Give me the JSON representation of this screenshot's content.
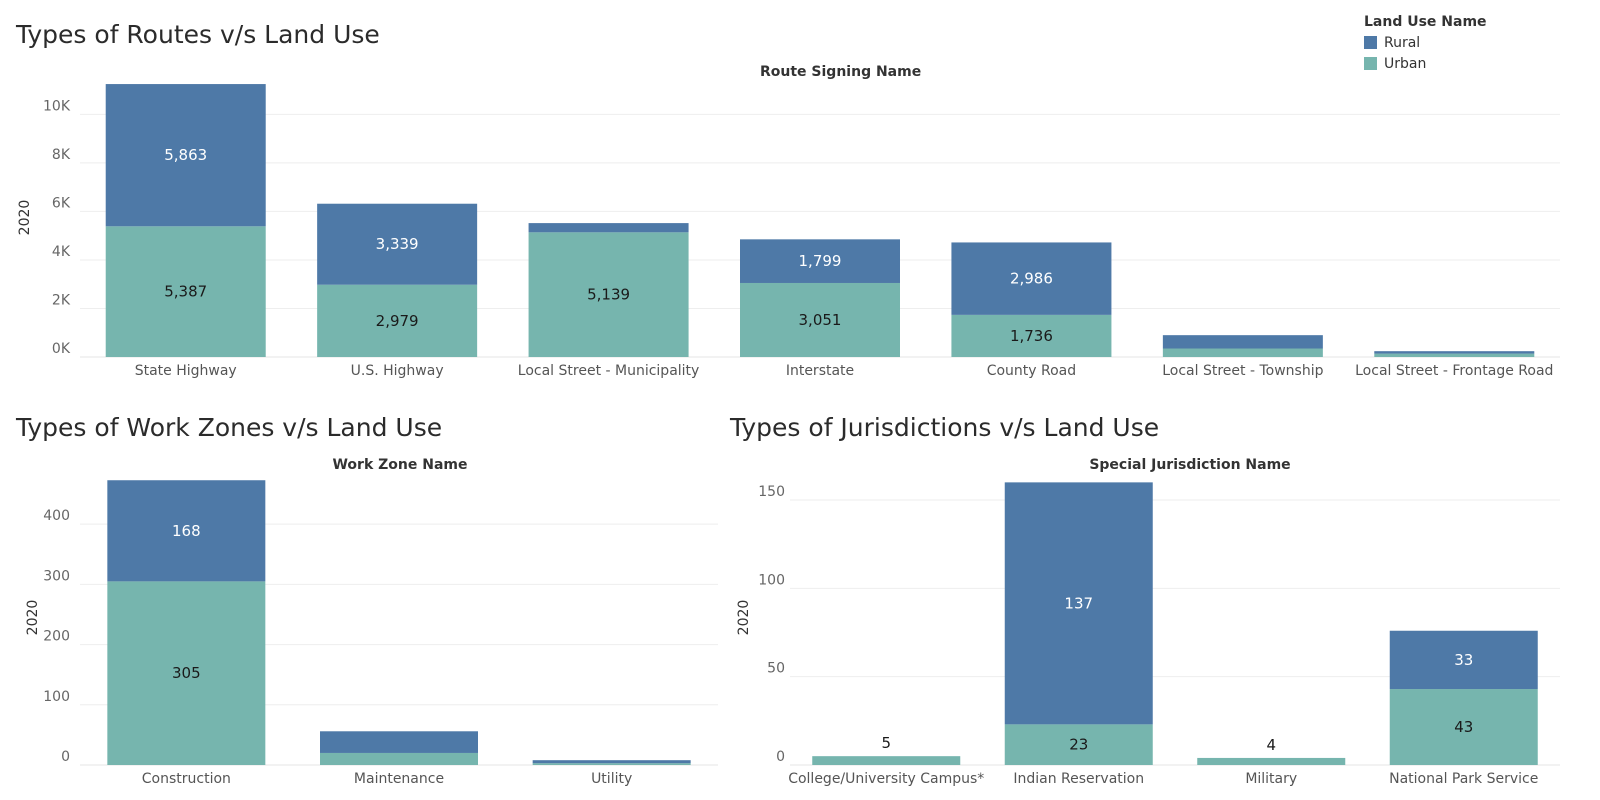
{
  "legend": {
    "title": "Land Use Name",
    "items": [
      {
        "label": "Rural",
        "color": "#4e79a7"
      },
      {
        "label": "Urban",
        "color": "#76b5ae"
      }
    ]
  },
  "chart_data": [
    {
      "type": "bar",
      "stacked": true,
      "title": "Types of Routes v/s Land Use",
      "column_header": "Route Signing Name",
      "ylabel": "2020",
      "ylim": [
        0,
        11500
      ],
      "yticks": [
        0,
        2000,
        4000,
        6000,
        8000,
        10000
      ],
      "ytick_labels": [
        "0K",
        "2K",
        "4K",
        "6K",
        "8K",
        "10K"
      ],
      "categories": [
        "State Highway",
        "U.S. Highway",
        "Local Street - Municipality",
        "Interstate",
        "County Road",
        "Local Street - Township",
        "Local Street - Frontage Road"
      ],
      "series": [
        {
          "name": "Urban",
          "values": [
            5387,
            2979,
            5139,
            3051,
            1736,
            350,
            140
          ],
          "labels": [
            "5,387",
            "2,979",
            "5,139",
            "3,051",
            "1,736",
            "",
            ""
          ]
        },
        {
          "name": "Rural",
          "values": [
            5863,
            3339,
            380,
            1799,
            2986,
            550,
            100
          ],
          "labels": [
            "5,863",
            "3,339",
            "",
            "1,799",
            "2,986",
            "",
            ""
          ]
        }
      ]
    },
    {
      "type": "bar",
      "stacked": true,
      "title": "Types of Work Zones v/s Land Use",
      "column_header": "Work Zone Name",
      "ylabel": "2020",
      "ylim": [
        0,
        490
      ],
      "yticks": [
        0,
        100,
        200,
        300,
        400
      ],
      "ytick_labels": [
        "0",
        "100",
        "200",
        "300",
        "400"
      ],
      "categories": [
        "Construction",
        "Maintenance",
        "Utility"
      ],
      "series": [
        {
          "name": "Urban",
          "values": [
            305,
            20,
            3
          ],
          "labels": [
            "305",
            "",
            ""
          ]
        },
        {
          "name": "Rural",
          "values": [
            168,
            36,
            5
          ],
          "labels": [
            "168",
            "",
            ""
          ]
        }
      ]
    },
    {
      "type": "bar",
      "stacked": true,
      "title": "Types of Jurisdictions v/s Land Use",
      "column_header": "Special Jurisdiction Name",
      "ylabel": "2020",
      "ylim": [
        0,
        167
      ],
      "yticks": [
        0,
        50,
        100,
        150
      ],
      "ytick_labels": [
        "0",
        "50",
        "100",
        "150"
      ],
      "categories": [
        "College/University Campus*",
        "Indian Reservation",
        "Military",
        "National Park Service"
      ],
      "totals_labels": [
        "5",
        "",
        "4",
        ""
      ],
      "series": [
        {
          "name": "Urban",
          "values": [
            5,
            23,
            4,
            43
          ],
          "labels": [
            "",
            "23",
            "",
            "43"
          ]
        },
        {
          "name": "Rural",
          "values": [
            0,
            137,
            0,
            33
          ],
          "labels": [
            "",
            "137",
            "",
            "33"
          ]
        }
      ]
    }
  ]
}
